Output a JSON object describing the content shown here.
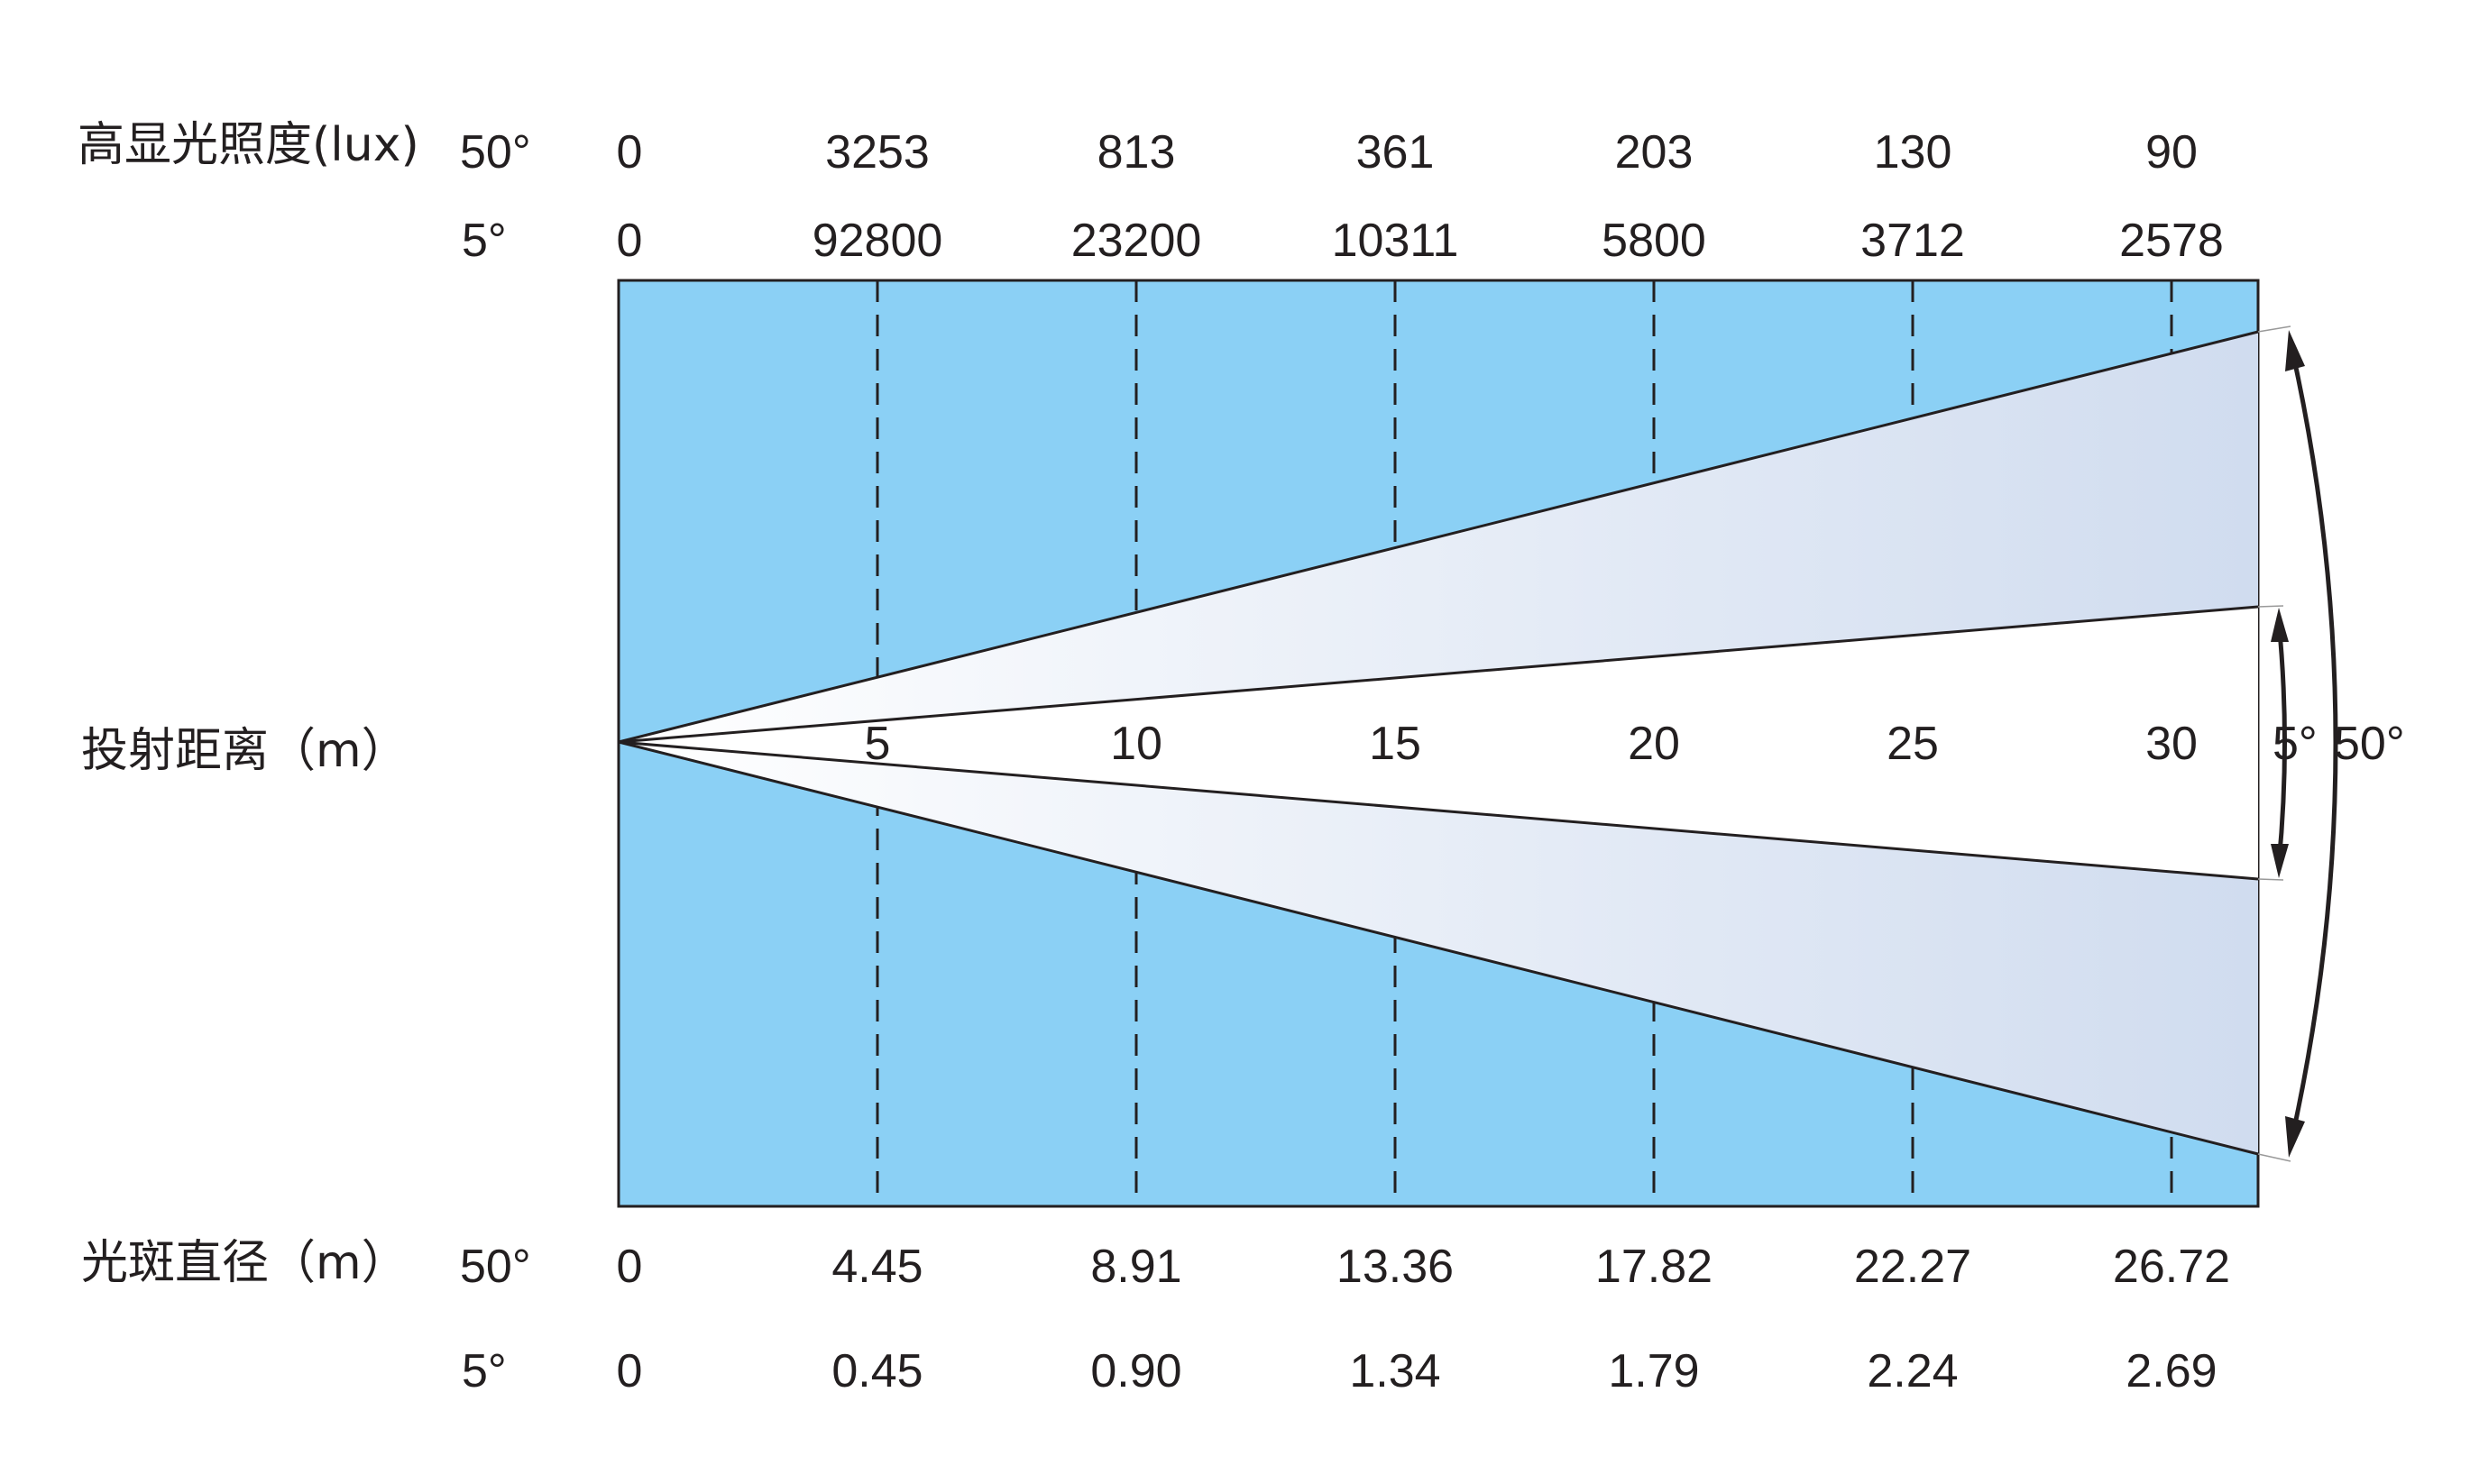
{
  "labels": {
    "illuminance": "高显光照度(lux)",
    "distance": "投射距离（m）",
    "spot_diameter": "光斑直径（m）",
    "wide_angle": "50°",
    "narrow_angle": "5°"
  },
  "colors": {
    "background_panel": "#8bd0f5",
    "beam_wide": "#dbe3f3",
    "beam_narrow": "#ffffff",
    "line": "#231f20"
  },
  "chart_data": {
    "type": "table",
    "distances_m": [
      0,
      5,
      10,
      15,
      20,
      25,
      30
    ],
    "distance_labels": [
      "5",
      "10",
      "15",
      "20",
      "25",
      "30"
    ],
    "illuminance_lux": {
      "50°": [
        "0",
        "3253",
        "813",
        "361",
        "203",
        "130",
        "90"
      ],
      "5°": [
        "0",
        "92800",
        "23200",
        "10311",
        "5800",
        "3712",
        "2578"
      ]
    },
    "spot_diameter_m": {
      "50°": [
        "0",
        "4.45",
        "8.91",
        "13.36",
        "17.82",
        "22.27",
        "26.72"
      ],
      "5°": [
        "0",
        "0.45",
        "0.90",
        "1.34",
        "1.79",
        "2.24",
        "2.69"
      ]
    },
    "beam_angles": [
      "5°",
      "50°"
    ]
  }
}
